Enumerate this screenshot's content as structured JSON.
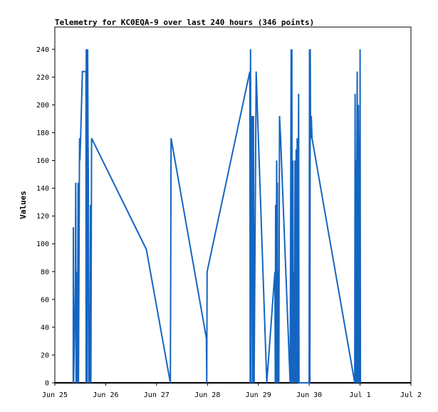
{
  "chart_data": {
    "type": "line",
    "title": "Telemetry for KC0EQA-9 over last 240 hours (346 points)",
    "ylabel": "Values",
    "xlabel": "",
    "x_ticks": [
      "Jun 25",
      "Jun 26",
      "Jun 27",
      "Jun 28",
      "Jun 29",
      "Jun 30",
      "Jul 1",
      "Jul 2"
    ],
    "xlim": [
      "Jun 25 00:00",
      "Jul 2 00:00"
    ],
    "ylim": [
      0,
      256
    ],
    "y_ticks": [
      0,
      20,
      40,
      60,
      80,
      100,
      120,
      140,
      160,
      180,
      200,
      220,
      240
    ],
    "grid": false,
    "line_color": "#1565c0",
    "series": [
      {
        "values_note_free": true,
        "points": [
          [
            "Jun 25 08:40",
            0
          ],
          [
            "Jun 25 08:45",
            112
          ],
          [
            "Jun 25 08:50",
            0
          ],
          [
            "Jun 25 09:30",
            56
          ],
          [
            "Jun 25 09:40",
            72
          ],
          [
            "Jun 25 09:50",
            144
          ],
          [
            "Jun 25 10:00",
            0
          ],
          [
            "Jun 25 10:30",
            80
          ],
          [
            "Jun 25 10:40",
            0
          ],
          [
            "Jun 25 11:00",
            144
          ],
          [
            "Jun 25 11:10",
            0
          ],
          [
            "Jun 25 11:40",
            176
          ],
          [
            "Jun 25 11:50",
            160
          ],
          [
            "Jun 25 12:10",
            176
          ],
          [
            "Jun 25 13:00",
            224
          ],
          [
            "Jun 25 14:40",
            224
          ],
          [
            "Jun 25 14:45",
            0
          ],
          [
            "Jun 25 14:50",
            240
          ],
          [
            "Jun 25 15:00",
            208
          ],
          [
            "Jun 25 15:10",
            0
          ],
          [
            "Jun 25 15:30",
            240
          ],
          [
            "Jun 25 15:40",
            176
          ],
          [
            "Jun 25 15:50",
            144
          ],
          [
            "Jun 25 16:00",
            0
          ],
          [
            "Jun 25 16:20",
            56
          ],
          [
            "Jun 25 16:30",
            0
          ],
          [
            "Jun 25 16:50",
            128
          ],
          [
            "Jun 25 17:00",
            0
          ],
          [
            "Jun 25 17:20",
            176
          ],
          [
            "Jun 26 19:10",
            96
          ],
          [
            "Jun 27 06:30",
            0
          ],
          [
            "Jun 27 06:40",
            80
          ],
          [
            "Jun 27 06:50",
            176
          ],
          [
            "Jun 27 23:30",
            32
          ],
          [
            "Jun 27 23:40",
            0
          ],
          [
            "Jun 27 23:50",
            80
          ],
          [
            "Jun 28 20:00",
            224
          ],
          [
            "Jun 28 20:10",
            0
          ],
          [
            "Jun 28 20:20",
            240
          ],
          [
            "Jun 28 20:30",
            0
          ],
          [
            "Jun 28 20:40",
            176
          ],
          [
            "Jun 28 21:00",
            192
          ],
          [
            "Jun 28 21:20",
            0
          ],
          [
            "Jun 28 21:40",
            192
          ],
          [
            "Jun 28 22:00",
            0
          ],
          [
            "Jun 28 23:00",
            224
          ],
          [
            "Jun 28 23:40",
            192
          ],
          [
            "Jun 29 04:00",
            0
          ],
          [
            "Jun 29 07:50",
            80
          ],
          [
            "Jun 29 08:00",
            0
          ],
          [
            "Jun 29 08:10",
            128
          ],
          [
            "Jun 29 08:20",
            0
          ],
          [
            "Jun 29 08:40",
            160
          ],
          [
            "Jun 29 08:50",
            0
          ],
          [
            "Jun 29 09:00",
            144
          ],
          [
            "Jun 29 09:10",
            0
          ],
          [
            "Jun 29 09:30",
            80
          ],
          [
            "Jun 29 09:40",
            0
          ],
          [
            "Jun 29 10:00",
            192
          ],
          [
            "Jun 29 10:30",
            176
          ],
          [
            "Jun 29 15:00",
            0
          ],
          [
            "Jun 29 15:30",
            240
          ],
          [
            "Jun 29 15:40",
            0
          ],
          [
            "Jun 29 15:50",
            240
          ],
          [
            "Jun 29 16:00",
            0
          ],
          [
            "Jun 29 16:20",
            160
          ],
          [
            "Jun 29 16:30",
            0
          ],
          [
            "Jun 29 16:50",
            80
          ],
          [
            "Jun 29 17:00",
            0
          ],
          [
            "Jun 29 17:20",
            160
          ],
          [
            "Jun 29 17:30",
            0
          ],
          [
            "Jun 29 17:50",
            168
          ],
          [
            "Jun 29 18:00",
            0
          ],
          [
            "Jun 29 18:20",
            176
          ],
          [
            "Jun 29 18:30",
            0
          ],
          [
            "Jun 29 19:00",
            208
          ],
          [
            "Jun 29 19:10",
            0
          ],
          [
            "Jun 29 19:30",
            0
          ],
          [
            "Jun 30 00:00",
            0
          ],
          [
            "Jun 30 00:10",
            240
          ],
          [
            "Jun 30 00:20",
            0
          ],
          [
            "Jun 30 00:30",
            240
          ],
          [
            "Jun 30 00:40",
            176
          ],
          [
            "Jun 30 01:00",
            192
          ],
          [
            "Jun 30 01:20",
            176
          ],
          [
            "Jun 30 21:30",
            0
          ],
          [
            "Jun 30 21:40",
            208
          ],
          [
            "Jun 30 21:50",
            0
          ],
          [
            "Jun 30 22:00",
            160
          ],
          [
            "Jun 30 22:10",
            0
          ],
          [
            "Jun 30 22:30",
            160
          ],
          [
            "Jun 30 22:40",
            224
          ],
          [
            "Jun 30 22:50",
            0
          ],
          [
            "Jun 30 23:10",
            200
          ],
          [
            "Jun 30 23:20",
            160
          ],
          [
            "Jun 30 23:30",
            0
          ],
          [
            "Jun 30 23:40",
            120
          ],
          [
            "Jun 30 23:50",
            0
          ],
          [
            "Jul 1 00:00",
            240
          ],
          [
            "Jul 1 00:10",
            0
          ]
        ]
      }
    ]
  }
}
